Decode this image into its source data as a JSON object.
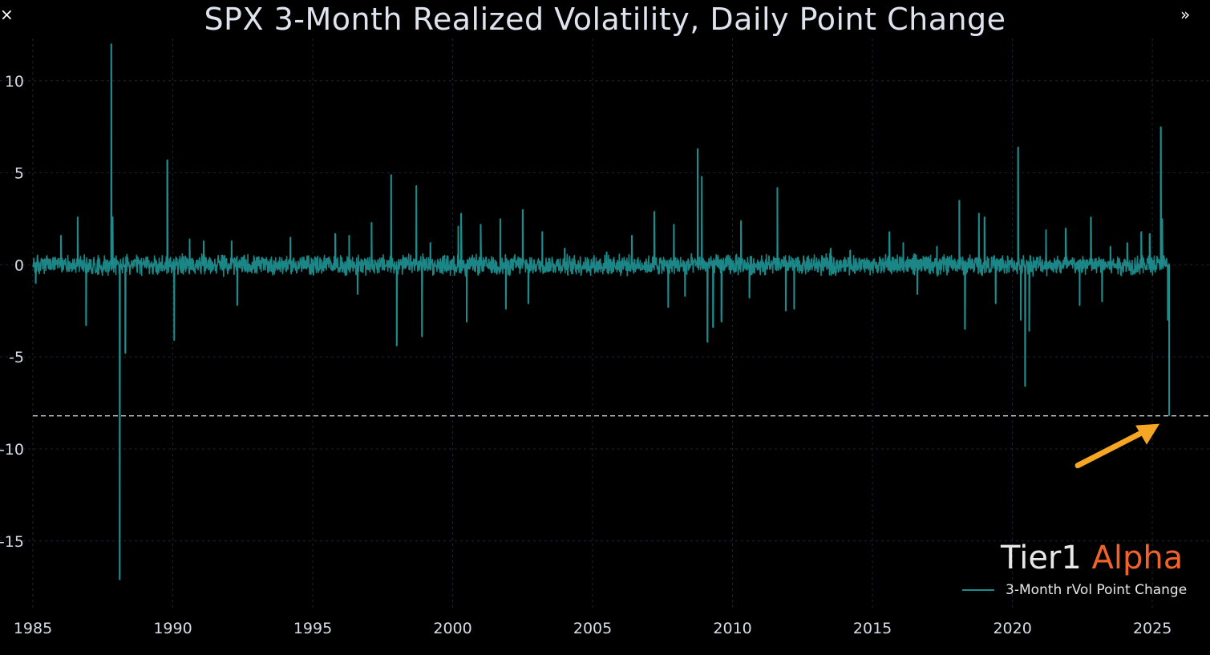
{
  "controls": {
    "close_glyph": "×",
    "expand_glyph": "»"
  },
  "watermark": {
    "brand": "Tier1",
    "brand_accent": "Alpha"
  },
  "colors": {
    "background": "#000000",
    "series": "#1e8c8c",
    "grid": "#1c2436",
    "reference_line": "#c8d0dc",
    "arrow": "#f5a623",
    "axis_text": "#d8dce6",
    "accent": "#f0632a"
  },
  "chart_data": {
    "type": "line",
    "title": "SPX 3-Month Realized Volatility, Daily Point Change",
    "xlabel": "",
    "ylabel": "",
    "xlim": [
      1985,
      2026.4
    ],
    "ylim": [
      -18.8,
      12.3
    ],
    "x_ticks": [
      1985,
      1990,
      1995,
      2000,
      2005,
      2010,
      2015,
      2020,
      2025
    ],
    "x_tick_labels": [
      "1985",
      "1990",
      "1995",
      "2000",
      "2005",
      "2010",
      "2015",
      "2020",
      "2025"
    ],
    "y_ticks": [
      10,
      5,
      0,
      -5,
      -10,
      -15
    ],
    "y_tick_labels": [
      "10",
      "5",
      "0",
      "-5",
      "-10",
      "-15"
    ],
    "grid": true,
    "legend_position": "bottom-right",
    "series": [
      {
        "name": "3-Month rVol Point Change",
        "color": "#1e8c8c",
        "baseline_noise": 0.45,
        "spikes": [
          {
            "x": 1985.1,
            "y": -1.0
          },
          {
            "x": 1986.0,
            "y": 1.6
          },
          {
            "x": 1986.6,
            "y": 2.6
          },
          {
            "x": 1986.9,
            "y": -3.3
          },
          {
            "x": 1987.8,
            "y": 12.0
          },
          {
            "x": 1987.85,
            "y": 2.6
          },
          {
            "x": 1988.1,
            "y": -17.1
          },
          {
            "x": 1988.3,
            "y": -4.8
          },
          {
            "x": 1989.8,
            "y": 5.7
          },
          {
            "x": 1990.05,
            "y": -4.1
          },
          {
            "x": 1990.6,
            "y": 1.4
          },
          {
            "x": 1991.1,
            "y": 1.3
          },
          {
            "x": 1992.1,
            "y": 1.3
          },
          {
            "x": 1992.3,
            "y": -2.2
          },
          {
            "x": 1994.2,
            "y": 1.5
          },
          {
            "x": 1995.8,
            "y": 1.7
          },
          {
            "x": 1996.3,
            "y": 1.6
          },
          {
            "x": 1996.6,
            "y": -1.6
          },
          {
            "x": 1997.1,
            "y": 2.3
          },
          {
            "x": 1997.8,
            "y": 4.9
          },
          {
            "x": 1998.0,
            "y": -4.4
          },
          {
            "x": 1998.7,
            "y": 4.3
          },
          {
            "x": 1998.9,
            "y": -3.9
          },
          {
            "x": 1999.2,
            "y": 1.2
          },
          {
            "x": 2000.2,
            "y": 2.1
          },
          {
            "x": 2000.3,
            "y": 2.8
          },
          {
            "x": 2000.5,
            "y": -3.1
          },
          {
            "x": 2001.0,
            "y": 2.2
          },
          {
            "x": 2001.7,
            "y": 2.5
          },
          {
            "x": 2001.9,
            "y": -2.4
          },
          {
            "x": 2002.5,
            "y": 3.0
          },
          {
            "x": 2002.7,
            "y": -2.1
          },
          {
            "x": 2003.2,
            "y": 1.8
          },
          {
            "x": 2004.0,
            "y": 0.9
          },
          {
            "x": 2005.5,
            "y": 0.7
          },
          {
            "x": 2006.4,
            "y": 1.6
          },
          {
            "x": 2007.2,
            "y": 2.9
          },
          {
            "x": 2007.7,
            "y": -2.3
          },
          {
            "x": 2007.9,
            "y": 2.2
          },
          {
            "x": 2008.3,
            "y": -1.7
          },
          {
            "x": 2008.75,
            "y": 6.3
          },
          {
            "x": 2008.9,
            "y": 4.8
          },
          {
            "x": 2009.1,
            "y": -4.2
          },
          {
            "x": 2009.3,
            "y": -3.4
          },
          {
            "x": 2009.6,
            "y": -3.1
          },
          {
            "x": 2010.3,
            "y": 2.4
          },
          {
            "x": 2010.6,
            "y": -1.8
          },
          {
            "x": 2011.6,
            "y": 4.2
          },
          {
            "x": 2011.9,
            "y": -2.5
          },
          {
            "x": 2012.2,
            "y": -2.4
          },
          {
            "x": 2013.5,
            "y": 0.9
          },
          {
            "x": 2014.2,
            "y": 0.8
          },
          {
            "x": 2015.6,
            "y": 1.8
          },
          {
            "x": 2016.1,
            "y": 1.2
          },
          {
            "x": 2016.6,
            "y": -1.6
          },
          {
            "x": 2017.3,
            "y": 1.0
          },
          {
            "x": 2018.1,
            "y": 3.5
          },
          {
            "x": 2018.3,
            "y": -3.5
          },
          {
            "x": 2018.8,
            "y": 2.8
          },
          {
            "x": 2019.0,
            "y": 2.6
          },
          {
            "x": 2019.4,
            "y": -2.1
          },
          {
            "x": 2020.2,
            "y": 6.4
          },
          {
            "x": 2020.3,
            "y": -3.0
          },
          {
            "x": 2020.45,
            "y": -6.6
          },
          {
            "x": 2020.6,
            "y": -3.6
          },
          {
            "x": 2021.2,
            "y": 1.9
          },
          {
            "x": 2021.9,
            "y": 2.0
          },
          {
            "x": 2022.4,
            "y": -2.2
          },
          {
            "x": 2022.8,
            "y": 2.6
          },
          {
            "x": 2023.2,
            "y": -2.0
          },
          {
            "x": 2023.5,
            "y": 1.0
          },
          {
            "x": 2024.1,
            "y": 1.2
          },
          {
            "x": 2024.6,
            "y": 1.8
          },
          {
            "x": 2024.9,
            "y": 1.7
          },
          {
            "x": 2025.3,
            "y": 7.5
          },
          {
            "x": 2025.35,
            "y": 2.5
          },
          {
            "x": 2025.55,
            "y": -3.0
          },
          {
            "x": 2025.6,
            "y": -8.2
          }
        ]
      }
    ],
    "reference_line": {
      "y": -8.2,
      "style": "dashed"
    },
    "annotation": {
      "type": "arrow",
      "color": "#f5a623",
      "target": {
        "x": 2025.6,
        "y": -8.2
      }
    }
  }
}
